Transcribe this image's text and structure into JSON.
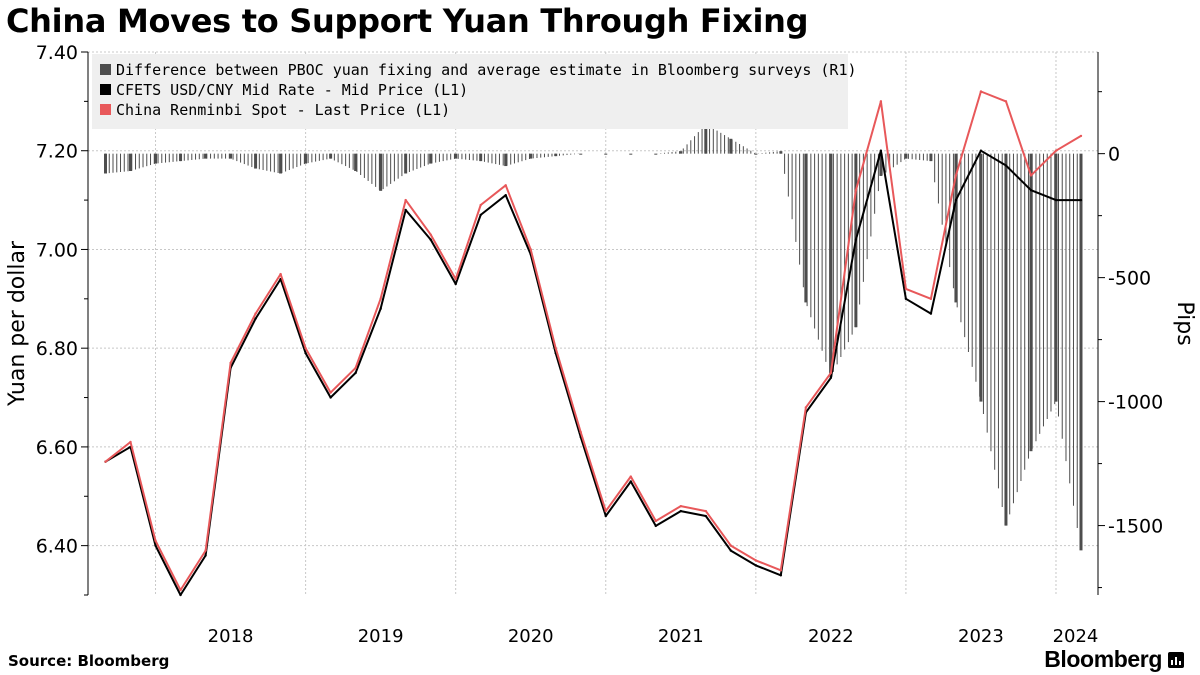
{
  "title": "China Moves to Support Yuan Through Fixing",
  "source": "Source: Bloomberg",
  "brand": "Bloomberg",
  "colors": {
    "difference": "#4d4d4d",
    "cfets": "#000000",
    "spot": "#e8585a",
    "legend_bg": "#efefef",
    "grid": "#c8c8c8"
  },
  "chart_data": {
    "type": "line",
    "x_ticks": [
      "2018",
      "2019",
      "2020",
      "2021",
      "2022",
      "2023",
      "2024"
    ],
    "y_left": {
      "label": "Yuan per dollar",
      "ticks": [
        "7.40",
        "7.20",
        "7.00",
        "6.80",
        "6.60",
        "6.40"
      ],
      "range": [
        6.3,
        7.4
      ]
    },
    "y_right": {
      "label": "Pips",
      "ticks": [
        "0",
        "-500",
        "-1000",
        "-1500"
      ],
      "range": [
        -1780,
        410
      ]
    },
    "grid": true,
    "legend_position": "top-left",
    "series": [
      {
        "name": "Difference between PBOC yuan fixing and average estimate in Bloomberg surveys (R1)",
        "type": "bar",
        "axis": "right",
        "x": [
          "2017-09",
          "2017-11",
          "2018-01",
          "2018-03",
          "2018-05",
          "2018-07",
          "2018-09",
          "2018-11",
          "2019-01",
          "2019-03",
          "2019-05",
          "2019-07",
          "2019-09",
          "2019-11",
          "2020-01",
          "2020-03",
          "2020-05",
          "2020-07",
          "2020-09",
          "2020-11",
          "2021-01",
          "2021-03",
          "2021-05",
          "2021-07",
          "2021-09",
          "2021-11",
          "2022-01",
          "2022-03",
          "2022-05",
          "2022-07",
          "2022-09",
          "2022-11",
          "2023-01",
          "2023-03",
          "2023-05",
          "2023-07",
          "2023-09",
          "2023-11",
          "2024-01",
          "2024-03"
        ],
        "values": [
          -80,
          -70,
          -40,
          -30,
          -20,
          -20,
          -60,
          -80,
          -40,
          -20,
          -70,
          -150,
          -80,
          -40,
          -20,
          -30,
          -50,
          -20,
          -10,
          0,
          0,
          0,
          0,
          10,
          120,
          60,
          0,
          10,
          -600,
          -900,
          -700,
          -90,
          -20,
          -30,
          -600,
          -1000,
          -1500,
          -1200,
          -1000,
          -1600
        ]
      },
      {
        "name": "CFETS USD/CNY Mid Rate - Mid Price (L1)",
        "type": "line",
        "axis": "left",
        "x": [
          "2017-09",
          "2017-11",
          "2018-01",
          "2018-03",
          "2018-05",
          "2018-07",
          "2018-09",
          "2018-11",
          "2019-01",
          "2019-03",
          "2019-05",
          "2019-07",
          "2019-09",
          "2019-11",
          "2020-01",
          "2020-03",
          "2020-05",
          "2020-07",
          "2020-09",
          "2020-11",
          "2021-01",
          "2021-03",
          "2021-05",
          "2021-07",
          "2021-09",
          "2021-11",
          "2022-01",
          "2022-03",
          "2022-05",
          "2022-07",
          "2022-09",
          "2022-11",
          "2023-01",
          "2023-03",
          "2023-05",
          "2023-07",
          "2023-09",
          "2023-11",
          "2024-01",
          "2024-03"
        ],
        "values": [
          6.57,
          6.6,
          6.4,
          6.3,
          6.38,
          6.76,
          6.86,
          6.94,
          6.79,
          6.7,
          6.75,
          6.88,
          7.08,
          7.02,
          6.93,
          7.07,
          7.11,
          6.99,
          6.79,
          6.62,
          6.46,
          6.53,
          6.44,
          6.47,
          6.46,
          6.39,
          6.36,
          6.34,
          6.67,
          6.74,
          7.02,
          7.2,
          6.9,
          6.87,
          7.1,
          7.2,
          7.17,
          7.12,
          7.1,
          7.1
        ]
      },
      {
        "name": "China Renminbi Spot - Last Price (L1)",
        "type": "line",
        "axis": "left",
        "x": [
          "2017-09",
          "2017-11",
          "2018-01",
          "2018-03",
          "2018-05",
          "2018-07",
          "2018-09",
          "2018-11",
          "2019-01",
          "2019-03",
          "2019-05",
          "2019-07",
          "2019-09",
          "2019-11",
          "2020-01",
          "2020-03",
          "2020-05",
          "2020-07",
          "2020-09",
          "2020-11",
          "2021-01",
          "2021-03",
          "2021-05",
          "2021-07",
          "2021-09",
          "2021-11",
          "2022-01",
          "2022-03",
          "2022-05",
          "2022-07",
          "2022-09",
          "2022-11",
          "2023-01",
          "2023-03",
          "2023-05",
          "2023-07",
          "2023-09",
          "2023-11",
          "2024-01",
          "2024-03"
        ],
        "values": [
          6.57,
          6.61,
          6.41,
          6.31,
          6.39,
          6.77,
          6.87,
          6.95,
          6.8,
          6.71,
          6.76,
          6.9,
          7.1,
          7.03,
          6.94,
          7.09,
          7.13,
          7.0,
          6.8,
          6.63,
          6.47,
          6.54,
          6.45,
          6.48,
          6.47,
          6.4,
          6.37,
          6.35,
          6.68,
          6.75,
          7.12,
          7.3,
          6.92,
          6.9,
          7.15,
          7.32,
          7.3,
          7.15,
          7.2,
          7.23
        ]
      }
    ]
  }
}
